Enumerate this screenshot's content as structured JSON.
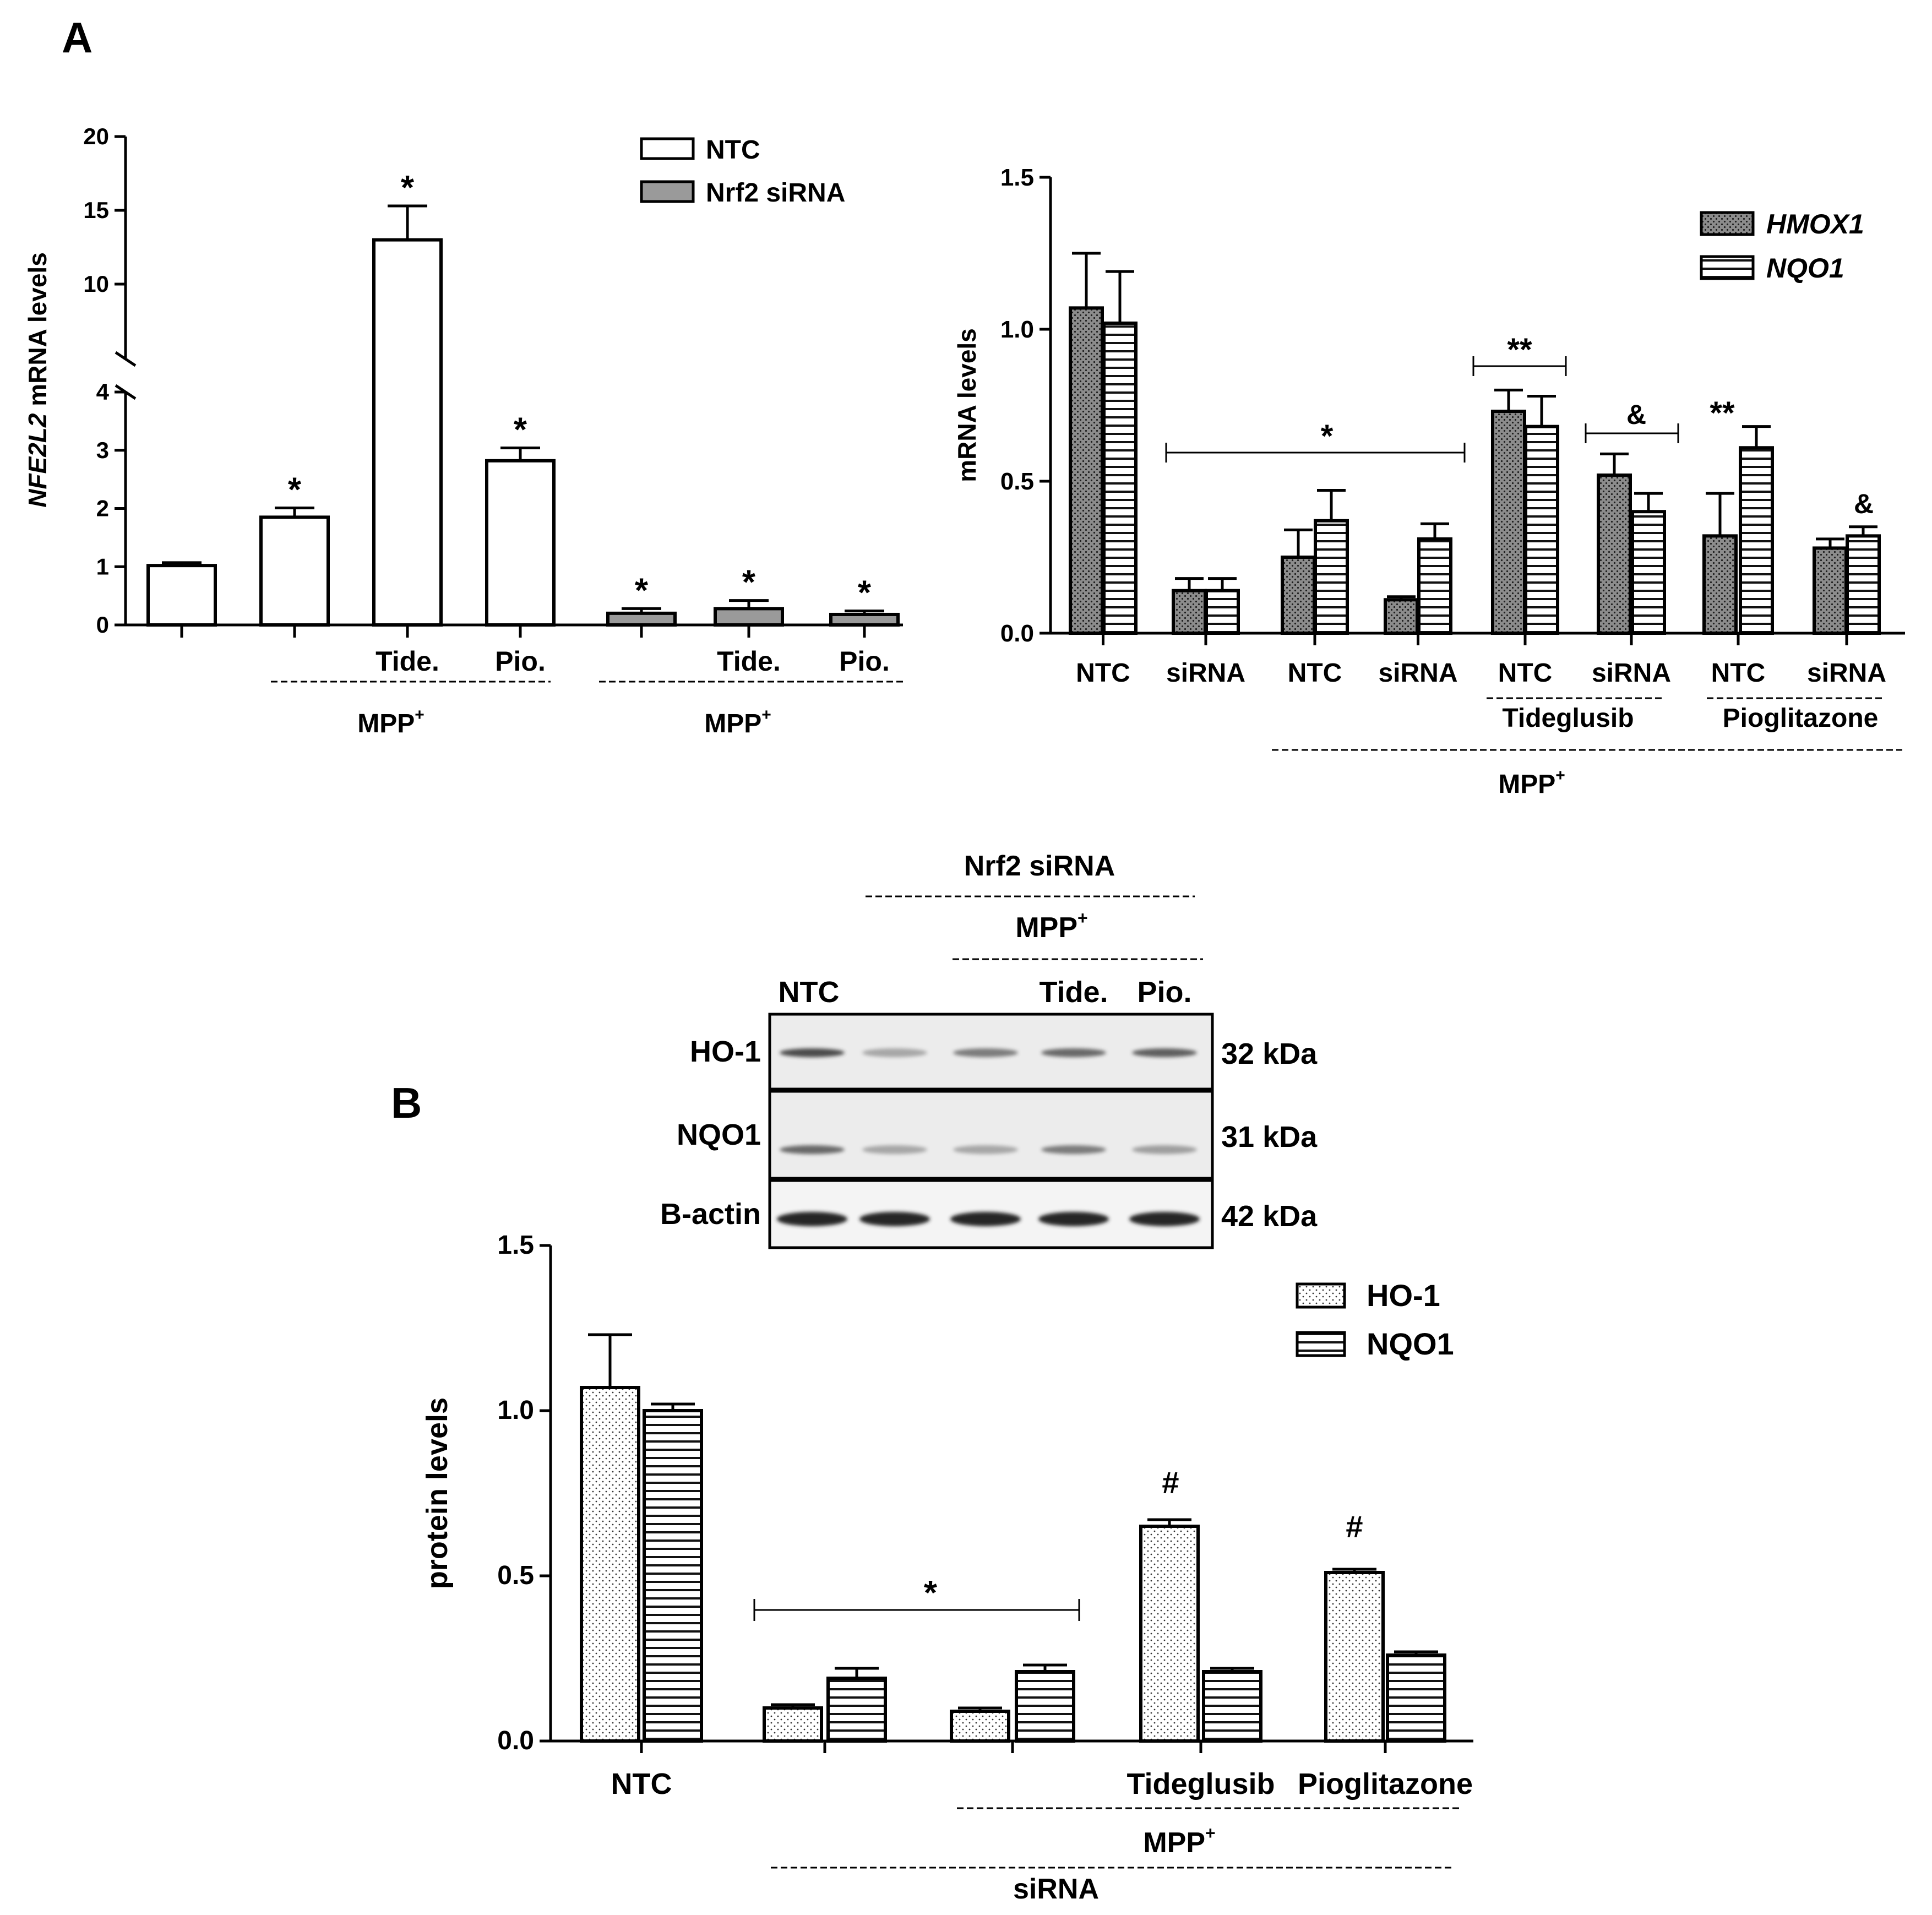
{
  "figure": {
    "panel_a_label": "A",
    "panel_b_label": "B"
  },
  "colors": {
    "ink": "#000000",
    "nrf2_gray": "#9a9a9a",
    "dot_dark_bg": "#8c8c8c",
    "blot_bg": "#ececec"
  },
  "blot": {
    "group_top": "Nrf2 siRNA",
    "group_mid": "MPP",
    "group_mid_sup": "+",
    "lanes": [
      "NTC",
      "",
      "",
      "Tide.",
      "Pio."
    ],
    "rows": [
      {
        "label": "HO-1",
        "kda": "32 kDa",
        "band_strength": [
          0.85,
          0.35,
          0.6,
          0.7,
          0.75
        ]
      },
      {
        "label": "NQO1",
        "kda": "31 kDa",
        "band_strength": [
          0.7,
          0.35,
          0.35,
          0.6,
          0.4
        ]
      },
      {
        "label": "B-actin",
        "kda": "42 kDa",
        "band_strength": [
          1,
          1,
          1,
          1,
          1
        ]
      }
    ]
  },
  "chart_data": [
    {
      "id": "a1",
      "type": "bar",
      "ylabel_italic": "NFE2L2",
      "ylabel_rest": " mRNA levels",
      "axis_break": true,
      "lower_range": [
        0,
        4
      ],
      "upper_range": [
        5,
        20
      ],
      "lower_ticks": [
        "0",
        "1",
        "2",
        "3",
        "4"
      ],
      "upper_ticks": [
        "10",
        "15",
        "20"
      ],
      "legend": [
        "NTC",
        "Nrf2 siRNA"
      ],
      "categories": [
        "",
        "",
        "Tide.",
        "Pio.",
        "",
        "Tide.",
        "Pio."
      ],
      "series_index": [
        0,
        0,
        0,
        0,
        1,
        1,
        1
      ],
      "values": [
        1.02,
        1.85,
        13.0,
        2.82,
        0.2,
        0.28,
        0.18
      ],
      "errors": [
        0.05,
        0.16,
        2.3,
        0.22,
        0.08,
        0.14,
        0.06
      ],
      "annotations": [
        "",
        "*",
        "*",
        "*",
        "*",
        "*",
        "*"
      ],
      "group_labels": [
        {
          "text": "MPP",
          "sup": "+",
          "from": 1,
          "to": 3
        },
        {
          "text": "MPP",
          "sup": "+",
          "from": 4,
          "to": 6
        }
      ]
    },
    {
      "id": "a2",
      "type": "bar",
      "ylabel": "mRNA levels",
      "ylim": [
        0,
        1.5
      ],
      "ticks": [
        "0.0",
        "0.5",
        "1.0",
        "1.5"
      ],
      "legend": [
        "HMOX1",
        "NQO1"
      ],
      "categories": [
        "NTC",
        "siRNA",
        "NTC",
        "siRNA",
        "NTC",
        "siRNA",
        "NTC",
        "siRNA"
      ],
      "series": [
        {
          "name": "HMOX1",
          "values": [
            1.07,
            0.14,
            0.25,
            0.11,
            0.73,
            0.52,
            0.32,
            0.28
          ],
          "errors": [
            0.18,
            0.04,
            0.09,
            0.01,
            0.07,
            0.07,
            0.14,
            0.03
          ]
        },
        {
          "name": "NQO1",
          "values": [
            1.02,
            0.14,
            0.37,
            0.31,
            0.68,
            0.4,
            0.61,
            0.32
          ],
          "errors": [
            0.17,
            0.04,
            0.1,
            0.05,
            0.1,
            0.06,
            0.07,
            0.03
          ]
        }
      ],
      "bracket_labels": [
        "*",
        "**",
        "&"
      ],
      "star_labels": [
        "**",
        "&"
      ],
      "sub_groups": [
        "Tideglusib",
        "Pioglitazone"
      ],
      "group_label": "MPP",
      "group_sup": "+"
    },
    {
      "id": "b",
      "type": "bar",
      "ylabel": "protein levels",
      "ylim": [
        0,
        1.5
      ],
      "ticks": [
        "0.0",
        "0.5",
        "1.0",
        "1.5"
      ],
      "legend": [
        "HO-1",
        "NQO1"
      ],
      "categories": [
        "NTC",
        "",
        "",
        "Tideglusib",
        "Pioglitazone"
      ],
      "series": [
        {
          "name": "HO-1",
          "values": [
            1.07,
            0.1,
            0.09,
            0.65,
            0.51
          ],
          "errors": [
            0.16,
            0.01,
            0.01,
            0.02,
            0.01
          ]
        },
        {
          "name": "NQO1",
          "values": [
            1.0,
            0.19,
            0.21,
            0.21,
            0.26
          ],
          "errors": [
            0.02,
            0.03,
            0.02,
            0.01,
            0.01
          ]
        }
      ],
      "bracket_label": "*",
      "hash_labels": [
        "#",
        "#"
      ],
      "group_mpp": "MPP",
      "group_mpp_sup": "+",
      "group_sirna": "siRNA"
    }
  ]
}
